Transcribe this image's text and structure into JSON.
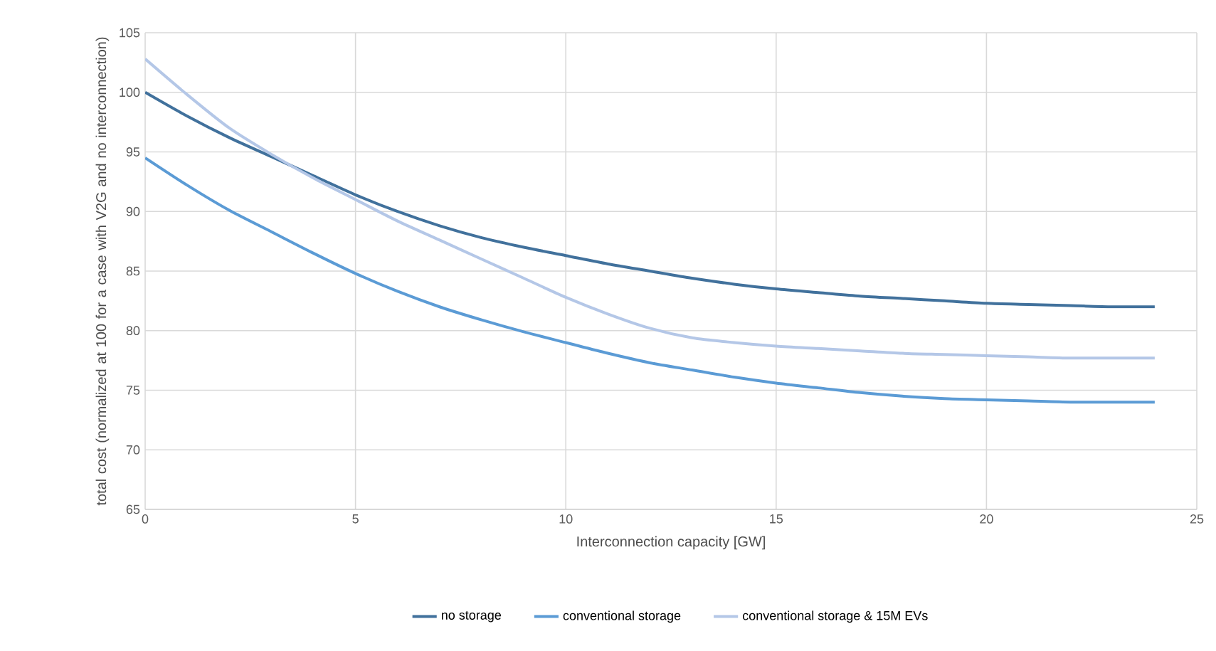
{
  "chart_data": {
    "type": "line",
    "xlabel": "Interconnection capacity [GW]",
    "ylabel": "total cost (normalized at 100 for a case with V2G and no interconnection)",
    "x": [
      0,
      1,
      2,
      3,
      4,
      5,
      6,
      7,
      8,
      9,
      10,
      11,
      12,
      13,
      14,
      15,
      16,
      17,
      18,
      19,
      20,
      21,
      22,
      23,
      24
    ],
    "series": [
      {
        "name": "no storage",
        "color": "#41719c",
        "values": [
          100,
          98,
          96.2,
          94.6,
          93.0,
          91.4,
          90.0,
          88.8,
          87.8,
          87.0,
          86.3,
          85.6,
          85.0,
          84.4,
          83.9,
          83.5,
          83.2,
          82.9,
          82.7,
          82.5,
          82.3,
          82.2,
          82.1,
          82.0,
          82.0
        ]
      },
      {
        "name": "conventional storage",
        "color": "#5b9bd5",
        "values": [
          94.5,
          92.2,
          90.1,
          88.3,
          86.5,
          84.8,
          83.3,
          82.0,
          80.9,
          79.9,
          79.0,
          78.1,
          77.3,
          76.7,
          76.1,
          75.6,
          75.2,
          74.8,
          74.5,
          74.3,
          74.2,
          74.1,
          74.0,
          74.0,
          74.0
        ]
      },
      {
        "name": "conventional storage & 15M EVs",
        "color": "#b4c7e7",
        "values": [
          102.8,
          99.8,
          97.0,
          94.8,
          92.8,
          91.0,
          89.2,
          87.6,
          86.0,
          84.4,
          82.8,
          81.4,
          80.2,
          79.4,
          79.0,
          78.7,
          78.5,
          78.3,
          78.1,
          78.0,
          77.9,
          77.8,
          77.7,
          77.7,
          77.7
        ]
      }
    ],
    "xlim": [
      0,
      25
    ],
    "ylim": [
      65,
      105
    ],
    "xticks": [
      0,
      5,
      10,
      15,
      20,
      25
    ],
    "yticks": [
      65,
      70,
      75,
      80,
      85,
      90,
      95,
      100,
      105
    ],
    "grid": true,
    "legend": "bottom"
  }
}
